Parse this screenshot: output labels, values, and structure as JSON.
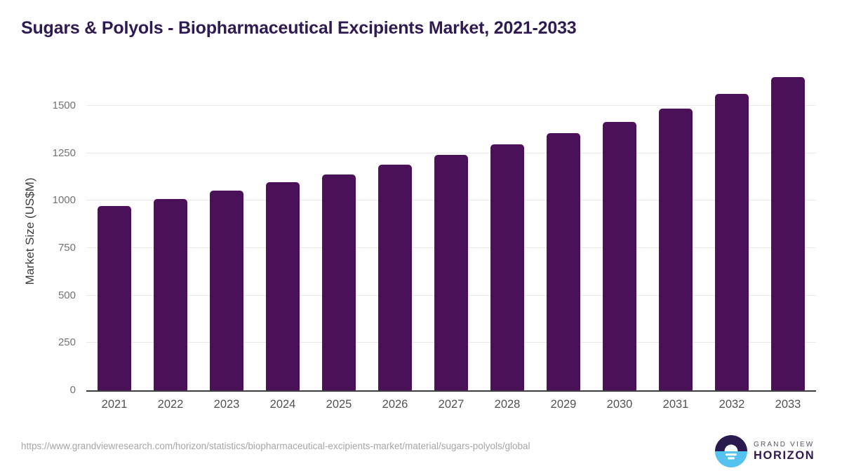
{
  "title": "Sugars & Polyols - Biopharmaceutical Excipients Market, 2021-2033",
  "chart_data": {
    "type": "bar",
    "title": "Sugars & Polyols - Biopharmaceutical Excipients Market, 2021-2033",
    "categories": [
      "2021",
      "2022",
      "2023",
      "2024",
      "2025",
      "2026",
      "2027",
      "2028",
      "2029",
      "2030",
      "2031",
      "2032",
      "2033"
    ],
    "values": [
      970,
      1010,
      1052,
      1096,
      1139,
      1188,
      1242,
      1296,
      1354,
      1416,
      1486,
      1564,
      1650
    ],
    "xlabel": "",
    "ylabel": "Market Size (US$M)",
    "ylim": [
      0,
      1688
    ],
    "yticks": [
      0,
      250,
      500,
      750,
      1000,
      1250,
      1500
    ],
    "grid": true,
    "legend": false,
    "bar_color": "#4a1158",
    "gridline_color": "#e9e9e9",
    "axis_line_color": "#3d3d3d",
    "tick_label_color": "#737373",
    "x_label_color": "#525252"
  },
  "colors": {
    "title": "#2f1a52",
    "background": "#ffffff",
    "logo_circle_top": "#2b1a4d",
    "logo_circle_bottom": "#55c3f0",
    "logo_horizon_text": "#32194f"
  },
  "footer": {
    "source_url": "https://www.grandviewresearch.com/horizon/statistics/biopharmaceutical-excipients-market/material/sugars-polyols/global",
    "logo": {
      "line1": "GRAND VIEW",
      "line2": "HORIZON"
    }
  }
}
